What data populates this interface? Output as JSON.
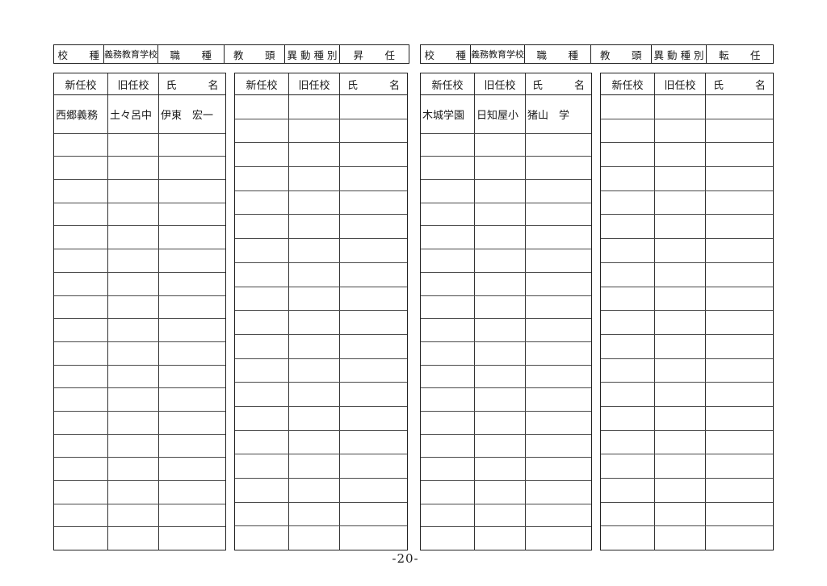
{
  "page": {
    "number_label": "-20-"
  },
  "panels": [
    {
      "side": "left",
      "meta_bar": {
        "cells": [
          "校　　種",
          "義務教育学校",
          "職　　種",
          "教　　頭",
          "異 動 種 別",
          "昇　　任"
        ]
      },
      "tables": [
        {
          "headers": [
            "新任校",
            "旧任校",
            "氏　　　名"
          ],
          "total_rows": 19,
          "rows": [
            [
              "西郷義務",
              "土々呂中",
              "伊東　宏一"
            ]
          ]
        },
        {
          "headers": [
            "新任校",
            "旧任校",
            "氏　　　名"
          ],
          "total_rows": 19,
          "rows": []
        }
      ]
    },
    {
      "side": "right",
      "meta_bar": {
        "cells": [
          "校　　種",
          "義務教育学校",
          "職　　種",
          "教　　頭",
          "異 動 種 別",
          "転　　任"
        ]
      },
      "tables": [
        {
          "headers": [
            "新任校",
            "旧任校",
            "氏　　　名"
          ],
          "total_rows": 19,
          "rows": [
            [
              "木城学園",
              "日知屋小",
              "猪山　学"
            ]
          ]
        },
        {
          "headers": [
            "新任校",
            "旧任校",
            "氏　　　名"
          ],
          "total_rows": 19,
          "rows": []
        }
      ]
    }
  ]
}
